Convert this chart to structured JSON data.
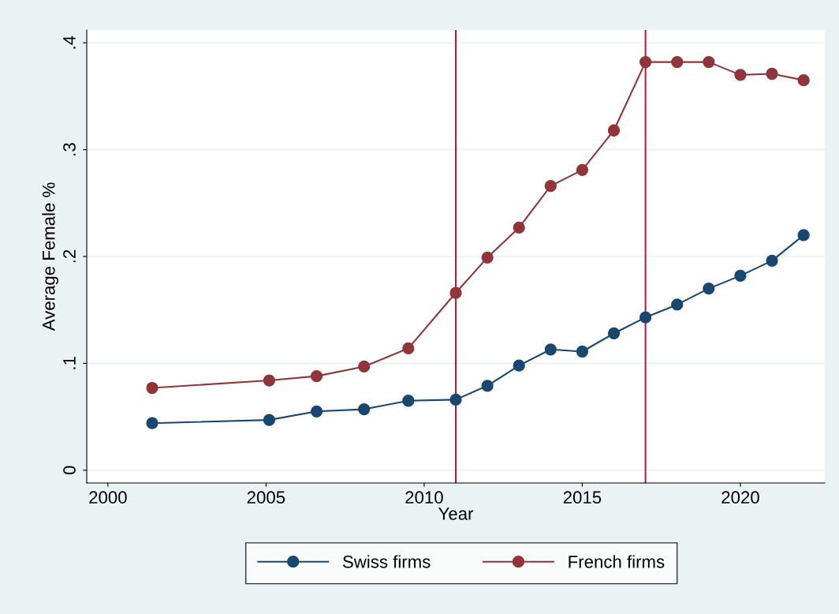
{
  "chart_data": {
    "type": "line",
    "xlabel": "Year",
    "ylabel": "Average Female %",
    "series": [
      {
        "name": "Swiss firms",
        "color": "#1a476f",
        "x": [
          2001.4,
          2005.1,
          2006.6,
          2008.1,
          2009.5,
          2011,
          2012,
          2013,
          2014,
          2015,
          2016,
          2017,
          2018,
          2019,
          2020,
          2021,
          2022
        ],
        "values": [
          0.044,
          0.047,
          0.055,
          0.057,
          0.065,
          0.066,
          0.079,
          0.098,
          0.113,
          0.111,
          0.128,
          0.143,
          0.155,
          0.17,
          0.182,
          0.196,
          0.22
        ]
      },
      {
        "name": "French firms",
        "color": "#90353b",
        "x": [
          2001.4,
          2005.1,
          2006.6,
          2008.1,
          2009.5,
          2011,
          2012,
          2013,
          2014,
          2015,
          2016,
          2017,
          2018,
          2019,
          2020,
          2021,
          2022
        ],
        "values": [
          0.077,
          0.084,
          0.088,
          0.097,
          0.114,
          0.166,
          0.199,
          0.227,
          0.266,
          0.281,
          0.318,
          0.382,
          0.382,
          0.382,
          0.37,
          0.371,
          0.365
        ]
      }
    ],
    "xlim": [
      1999.33,
      2022.67
    ],
    "xticks": [
      2000,
      2005,
      2010,
      2015,
      2020
    ],
    "ylim": [
      -0.012,
      0.412
    ],
    "yticks": [
      0,
      {
        "value": 0.1,
        "label": ".1"
      },
      {
        "value": 0.2,
        "label": ".2"
      },
      {
        "value": 0.3,
        "label": ".3"
      },
      {
        "value": 0.4,
        "label": ".4"
      }
    ],
    "ref_lines": [
      {
        "axis": "x",
        "value": 2011,
        "color": "#b0203a"
      },
      {
        "axis": "x",
        "value": 2017,
        "color": "#b0203a"
      }
    ],
    "grid": "y",
    "legend": "bottom",
    "marker": "circle",
    "line_style": "solid"
  }
}
